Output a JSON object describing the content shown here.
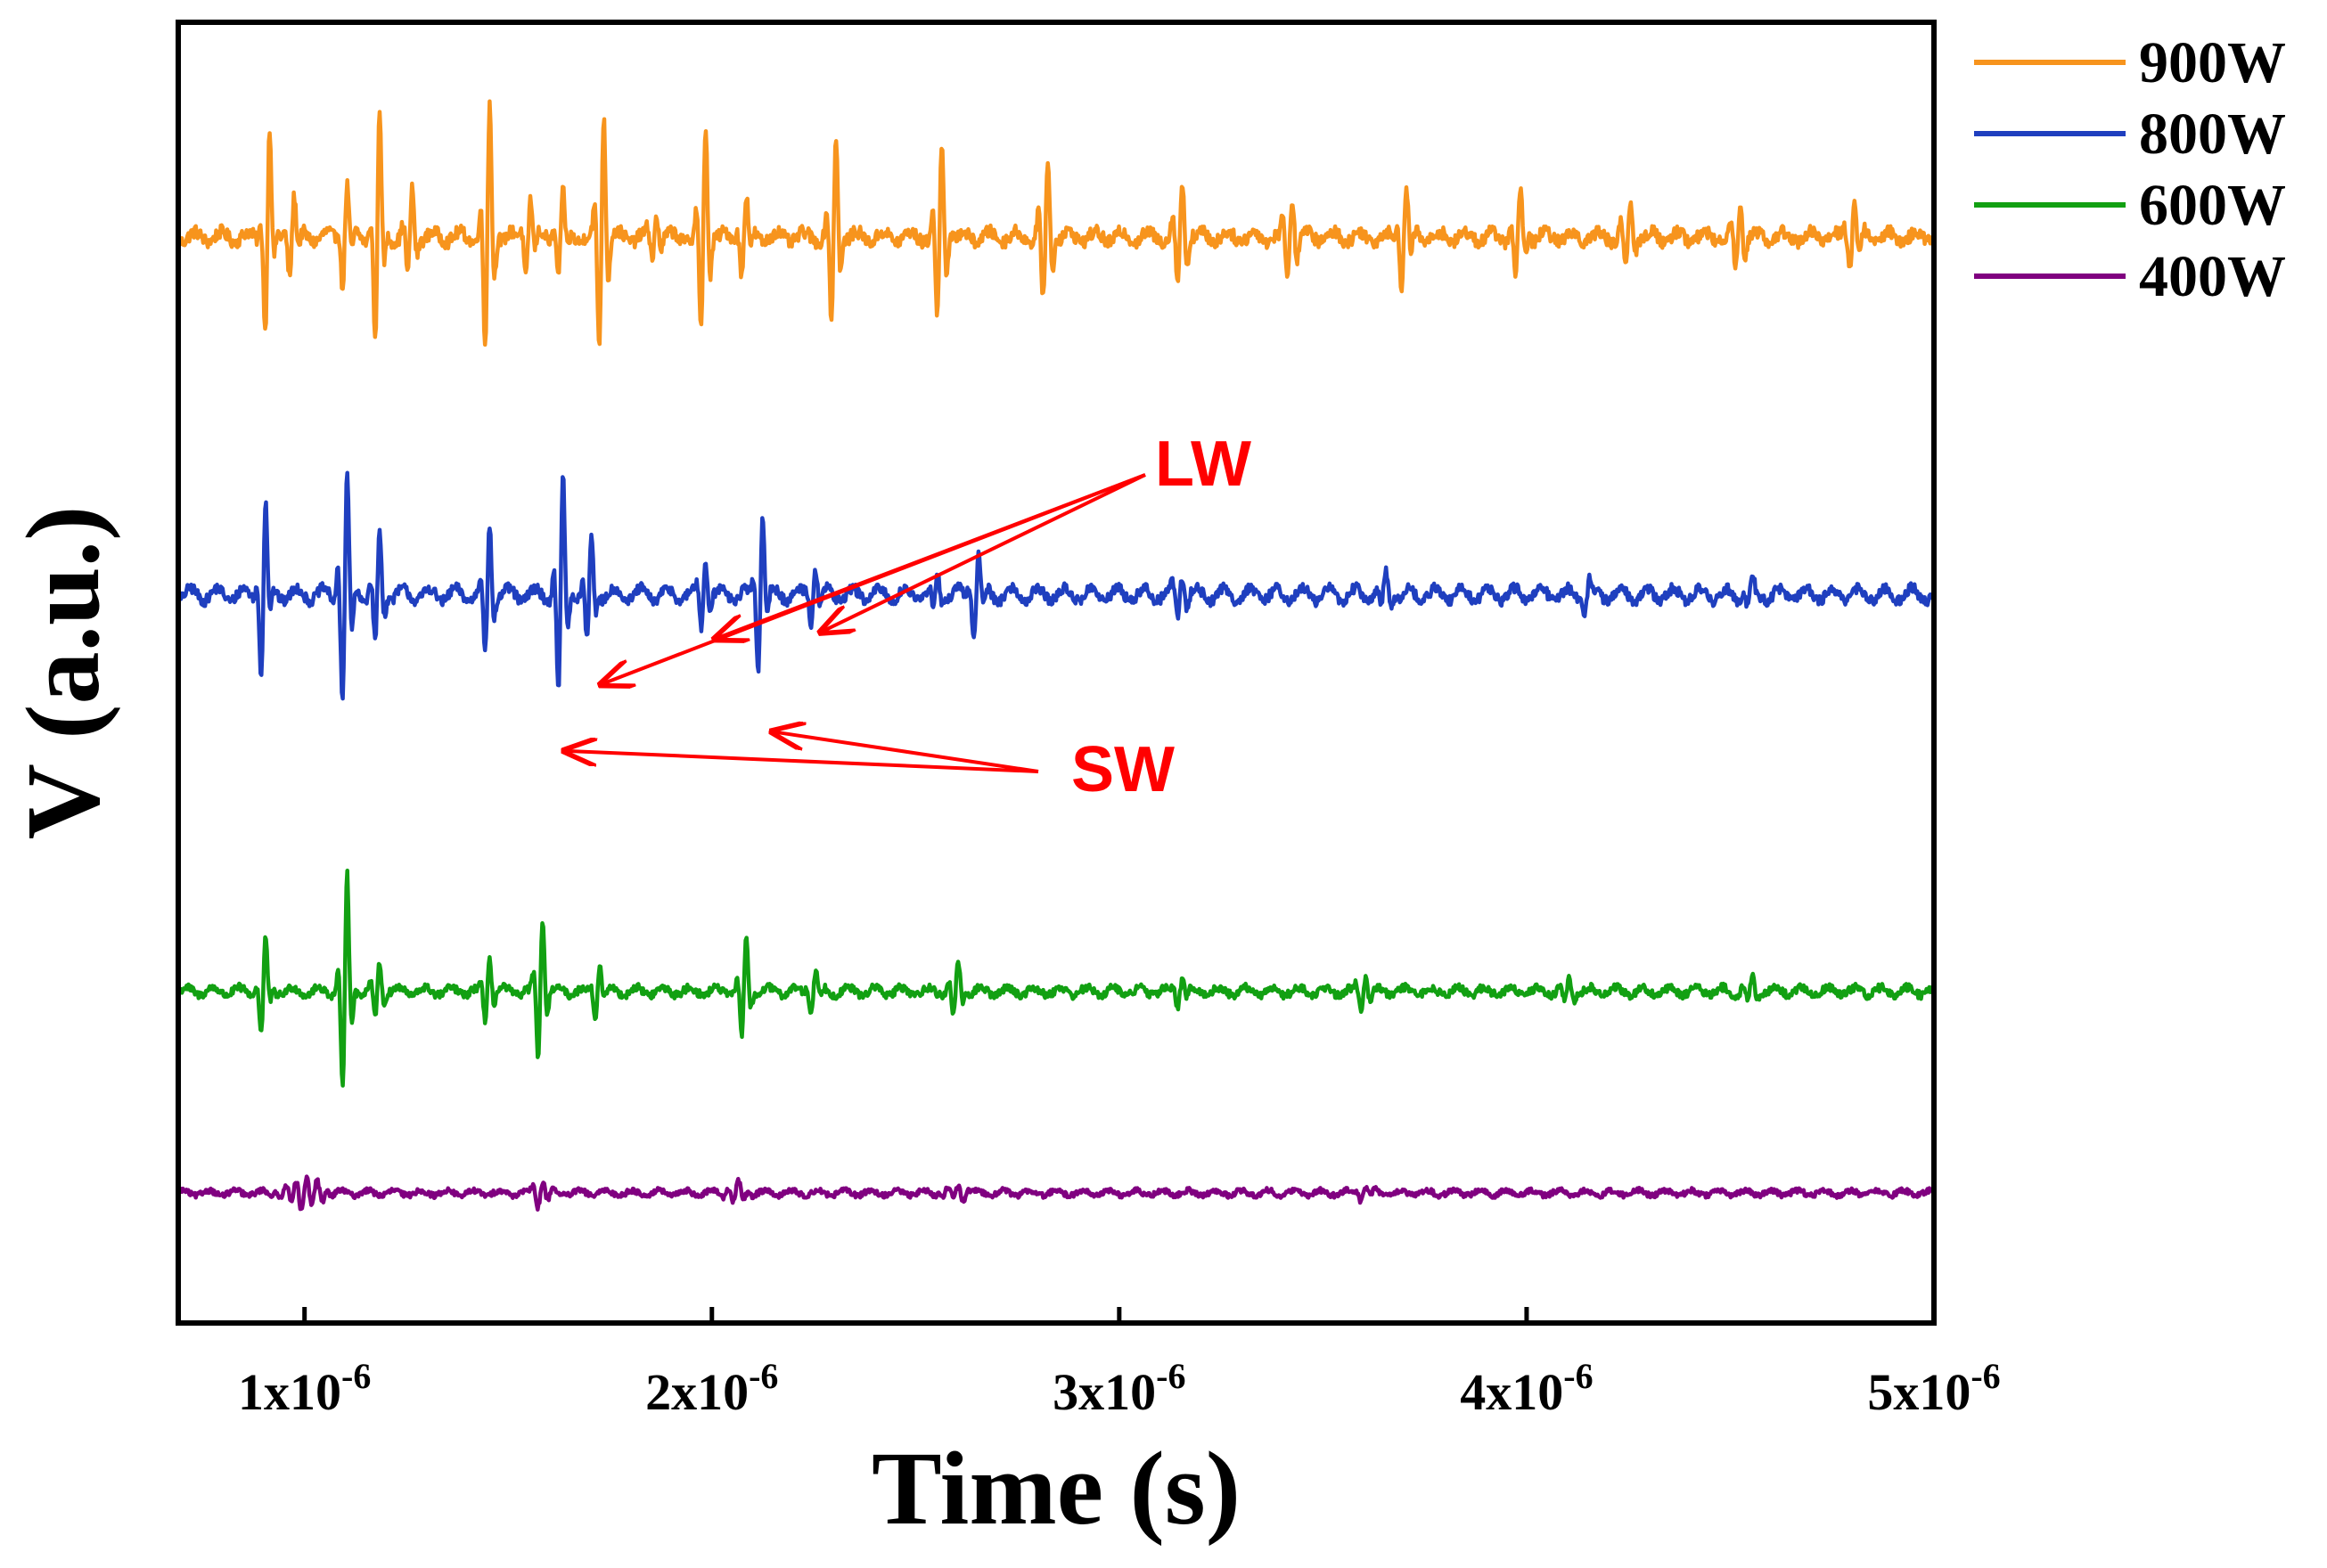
{
  "chart_data": {
    "type": "line",
    "xlabel": "Time (s)",
    "ylabel": "V (a.u.)",
    "xlim": [
      6.9e-07,
      5e-06
    ],
    "x_ticks": [
      {
        "value": 1e-06,
        "mantissa": "1x10",
        "exponent": "-6"
      },
      {
        "value": 2e-06,
        "mantissa": "2x10",
        "exponent": "-6"
      },
      {
        "value": 3e-06,
        "mantissa": "3x10",
        "exponent": "-6"
      },
      {
        "value": 4e-06,
        "mantissa": "4x10",
        "exponent": "-6"
      },
      {
        "value": 5e-06,
        "mantissa": "5x10",
        "exponent": "-6"
      }
    ],
    "y_ticks_shown": false,
    "grid": false,
    "legend_position": "right-top, outside plot",
    "series": [
      {
        "name": "900W",
        "color": "#f7941d",
        "baseline": 0.835,
        "noise": 0.005,
        "ripple": 0.004,
        "bursts": [
          [
            9.1e-07,
            0.095,
            1.3e-08
          ],
          [
            9.7e-07,
            0.035,
            1.5e-08
          ],
          [
            1.1e-06,
            0.045,
            1.5e-08
          ],
          [
            1.18e-06,
            0.11,
            1.3e-08
          ],
          [
            1.26e-06,
            0.04,
            1.5e-08
          ],
          [
            1.45e-06,
            0.11,
            1.5e-08
          ],
          [
            1.55e-06,
            0.035,
            1.5e-08
          ],
          [
            1.63e-06,
            0.035,
            1.5e-08
          ],
          [
            1.73e-06,
            0.105,
            1.5e-08
          ],
          [
            1.86e-06,
            0.02,
            1.5e-08
          ],
          [
            1.98e-06,
            0.095,
            1.5e-08
          ],
          [
            2.08e-06,
            0.035,
            1.5e-08
          ],
          [
            2.3e-06,
            0.085,
            1.5e-08
          ],
          [
            2.56e-06,
            0.08,
            1.6e-08
          ],
          [
            2.82e-06,
            0.06,
            1.7e-08
          ],
          [
            3.15e-06,
            0.045,
            1.8e-08
          ],
          [
            3.42e-06,
            0.035,
            1.8e-08
          ],
          [
            3.7e-06,
            0.04,
            1.8e-08
          ],
          [
            3.98e-06,
            0.035,
            1.8e-08
          ],
          [
            4.25e-06,
            0.03,
            1.8e-08
          ],
          [
            4.52e-06,
            0.03,
            1.8e-08
          ],
          [
            4.8e-06,
            0.028,
            1.8e-08
          ]
        ]
      },
      {
        "name": "800W",
        "color": "#1f3fbf",
        "baseline": 0.56,
        "noise": 0.004,
        "ripple": 0.005,
        "bursts": [
          [
            9e-07,
            0.08,
            1.3e-08
          ],
          [
            1.1e-06,
            0.1,
            1.6e-08
          ],
          [
            1.18e-06,
            0.05,
            1.5e-08
          ],
          [
            1.45e-06,
            0.06,
            1.4e-08
          ],
          [
            1.63e-06,
            0.095,
            1.5e-08
          ],
          [
            1.7e-06,
            0.05,
            1.4e-08
          ],
          [
            1.98e-06,
            0.035,
            1.3e-08
          ],
          [
            2.12e-06,
            0.07,
            1.4e-08
          ],
          [
            2.25e-06,
            0.025,
            1.4e-08
          ],
          [
            2.55e-06,
            0.015,
            1.5e-08
          ],
          [
            2.65e-06,
            0.035,
            1.6e-08
          ],
          [
            3.15e-06,
            0.02,
            1.8e-08
          ],
          [
            3.65e-06,
            0.015,
            1.8e-08
          ],
          [
            4.15e-06,
            0.012,
            1.8e-08
          ],
          [
            4.55e-06,
            0.012,
            1.8e-08
          ]
        ]
      },
      {
        "name": "600W",
        "color": "#12a012",
        "baseline": 0.255,
        "noise": 0.003,
        "ripple": 0.003,
        "bursts": [
          [
            9e-07,
            0.045,
            1.3e-08
          ],
          [
            1.1e-06,
            0.1,
            1.4e-08
          ],
          [
            1.18e-06,
            0.025,
            1.5e-08
          ],
          [
            1.45e-06,
            0.03,
            1.4e-08
          ],
          [
            1.58e-06,
            0.065,
            1.5e-08
          ],
          [
            1.72e-06,
            0.025,
            1.4e-08
          ],
          [
            2.08e-06,
            0.045,
            1.5e-08
          ],
          [
            2.25e-06,
            0.018,
            1.5e-08
          ],
          [
            2.6e-06,
            0.025,
            1.6e-08
          ],
          [
            3.15e-06,
            0.012,
            1.8e-08
          ],
          [
            3.6e-06,
            0.015,
            1.8e-08
          ],
          [
            4.1e-06,
            0.01,
            1.8e-08
          ],
          [
            4.55e-06,
            0.01,
            1.8e-08
          ]
        ]
      },
      {
        "name": "400W",
        "color": "#800080",
        "baseline": 0.1,
        "noise": 0.002,
        "ripple": 0.002,
        "bursts": [
          [
            1e-06,
            0.012,
            5e-08
          ],
          [
            1.58e-06,
            0.01,
            2.5e-08
          ],
          [
            2.06e-06,
            0.008,
            2.5e-08
          ],
          [
            2.6e-06,
            0.006,
            3e-08
          ],
          [
            3.6e-06,
            0.004,
            3e-08
          ]
        ]
      }
    ],
    "annotations": [
      {
        "label": "LW",
        "color": "#ff0000",
        "targets": [
          [
            1.72e-06,
            0.49
          ],
          [
            2e-06,
            0.525
          ],
          [
            2.26e-06,
            0.53
          ]
        ]
      },
      {
        "label": "SW",
        "color": "#ff0000",
        "targets": [
          [
            1.63e-06,
            0.44
          ],
          [
            2.14e-06,
            0.455
          ]
        ]
      }
    ]
  }
}
